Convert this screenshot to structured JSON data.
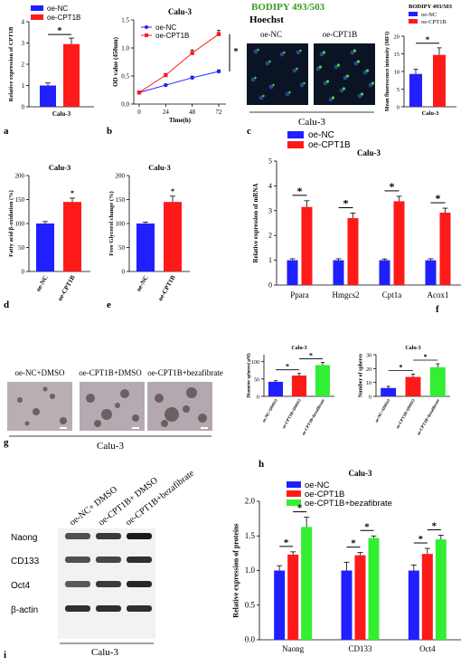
{
  "colors": {
    "blue": "#1f1fff",
    "red": "#ff1a1a",
    "green": "#33ee33",
    "bodipy_green": "#3a9a22",
    "blot_bg": "#f2f2f2"
  },
  "panels": {
    "a": {
      "letter": "a",
      "title": ""
    },
    "b": {
      "letter": "b",
      "title": "Calu-3"
    },
    "c": {
      "letter": "c",
      "bodipy": "BODIPY 493/503",
      "hoechst": "Hoechst",
      "img1": "oe-NC",
      "img2": "oe-CPT1B",
      "cell": "Calu-3",
      "legend_title": "BODIPY 493/503"
    },
    "d": {
      "letter": "d",
      "title": "Calu-3"
    },
    "e": {
      "letter": "e",
      "title": "Calu-3"
    },
    "f": {
      "letter": "f",
      "title": "Calu-3"
    },
    "g": {
      "letter": "g",
      "labels": [
        "oe-NC+DMSO",
        "oe-CPT1B+DMSO",
        "oe-CPT1B+bezafibrate"
      ],
      "cell": "Calu-3"
    },
    "h": {
      "letter": "h",
      "title1": "Calu-3",
      "title2": "Calu-3"
    },
    "i": {
      "letter": "i",
      "lanes": [
        "oe-NC+ DMSO",
        "oe-CPT1B+ DMSO",
        "oe-CPT1B+bezafibrate"
      ],
      "rows": [
        "Naong",
        "CD133",
        "Oct4",
        "β-actin"
      ],
      "cell": "Calu-3"
    },
    "j": {
      "title": "Calu-3"
    }
  },
  "chart_data": [
    {
      "id": "a",
      "type": "bar",
      "categories": [
        "Calu-3"
      ],
      "series": [
        {
          "name": "oe-NC",
          "values": [
            1.0
          ]
        },
        {
          "name": "oe-CPT1B",
          "values": [
            2.95
          ]
        }
      ],
      "ylabel": "Relative expression of CPT1B",
      "ylim": [
        0,
        4
      ],
      "yticks": [
        "0",
        "1",
        "2",
        "3",
        "4"
      ],
      "errors": [
        0.12,
        0.28
      ],
      "sig": "*",
      "legend": "top-left"
    },
    {
      "id": "b",
      "type": "line",
      "title": "Calu-3",
      "x": [
        0,
        24,
        48,
        72
      ],
      "xlabel": "Time(h)",
      "ylabel": "OD value (450nm)",
      "ylim": [
        0,
        1.6
      ],
      "yticks": [
        "0.0",
        "0.5",
        "1.0",
        "1.5"
      ],
      "series": [
        {
          "name": "oe-NC",
          "values": [
            0.22,
            0.36,
            0.5,
            0.62
          ]
        },
        {
          "name": "oe-CPT1B",
          "values": [
            0.22,
            0.55,
            0.97,
            1.33
          ]
        }
      ],
      "sig": "*"
    },
    {
      "id": "c",
      "type": "bar",
      "categories": [
        "Calu-3"
      ],
      "series": [
        {
          "name": "oe-NC",
          "values": [
            9.3
          ]
        },
        {
          "name": "oe-CPT1B",
          "values": [
            14.7
          ]
        }
      ],
      "ylabel": "Mean fluorescence intensity (MFI)",
      "ylim": [
        0,
        20
      ],
      "yticks": [
        "0",
        "5",
        "10",
        "15",
        "20"
      ],
      "errors": [
        1.3,
        2.0
      ],
      "sig": "*"
    },
    {
      "id": "d",
      "type": "bar",
      "title": "Calu-3",
      "categories": [
        "oe-NC",
        "oe-CPT1B"
      ],
      "values": [
        100,
        145
      ],
      "errors": [
        4,
        8
      ],
      "ylabel": "Fatty acid β-oxidation (%)",
      "ylim": [
        0,
        200
      ],
      "yticks": [
        "0",
        "50",
        "100",
        "150",
        "200"
      ],
      "sig": "*"
    },
    {
      "id": "e",
      "type": "bar",
      "title": "Calu-3",
      "categories": [
        "oe-NC",
        "oe-CPT1B"
      ],
      "values": [
        100,
        145
      ],
      "errors": [
        3,
        12
      ],
      "ylabel": "Free Glycerol change (%)",
      "ylim": [
        0,
        200
      ],
      "yticks": [
        "0",
        "50",
        "100",
        "150",
        "200"
      ],
      "sig": "*"
    },
    {
      "id": "f",
      "type": "bar",
      "title": "Calu-3",
      "categories": [
        "Ppara",
        "Hmgcs2",
        "Cpt1a",
        "Acox1"
      ],
      "series": [
        {
          "name": "oe-NC",
          "values": [
            1.0,
            1.0,
            1.0,
            1.0
          ]
        },
        {
          "name": "oe-CPT1B",
          "values": [
            3.15,
            2.7,
            3.38,
            2.92
          ]
        }
      ],
      "errors": [
        [
          0.06,
          0.06,
          0.05,
          0.06
        ],
        [
          0.25,
          0.2,
          0.2,
          0.18
        ]
      ],
      "ylabel": "Relative expression of mRNA",
      "ylim": [
        0,
        5
      ],
      "yticks": [
        "0",
        "1",
        "2",
        "3",
        "4",
        "5"
      ],
      "sig": "*"
    },
    {
      "id": "h1",
      "type": "bar",
      "title": "Calu-3",
      "categories": [
        "oe-NC+DMSO",
        "oe-CPT1B+DMSO",
        "oe-CPT1B+bezafibrate"
      ],
      "values": [
        42,
        60,
        90
      ],
      "errors": [
        3,
        6,
        8
      ],
      "ylabel": "Diameter spheres( μM)",
      "ylim": [
        0,
        120
      ],
      "yticks": [
        "0",
        "50",
        "100"
      ],
      "sig": "*"
    },
    {
      "id": "h2",
      "type": "bar",
      "title": "Calu-3",
      "categories": [
        "oe-NC+DMSO",
        "oe-CPT1B+DMSO",
        "oe-CPT1B+bezafibrate"
      ],
      "values": [
        6,
        14,
        21
      ],
      "errors": [
        1.2,
        2,
        2.5
      ],
      "ylabel": "Number of spheres",
      "ylim": [
        0,
        30
      ],
      "yticks": [
        "0",
        "10",
        "20",
        "30"
      ],
      "sig": "*"
    },
    {
      "id": "j",
      "type": "bar",
      "title": "Calu-3",
      "categories": [
        "Naong",
        "CD133",
        "Oct4"
      ],
      "series": [
        {
          "name": "oe-NC",
          "values": [
            1.0,
            1.0,
            1.0
          ]
        },
        {
          "name": "oe-CPT1B",
          "values": [
            1.23,
            1.22,
            1.24
          ]
        },
        {
          "name": "oe-CPT1B+bezafibrate",
          "values": [
            1.63,
            1.47,
            1.45
          ]
        }
      ],
      "errors": [
        [
          0.07,
          0.12,
          0.08
        ],
        [
          0.04,
          0.04,
          0.08
        ],
        [
          0.14,
          0.03,
          0.06
        ]
      ],
      "ylabel": "Relative expression of proteins",
      "ylim": [
        0,
        2
      ],
      "yticks": [
        "0.0",
        "0.5",
        "1.0",
        "1.5",
        "2.0"
      ],
      "sig": "*"
    }
  ]
}
